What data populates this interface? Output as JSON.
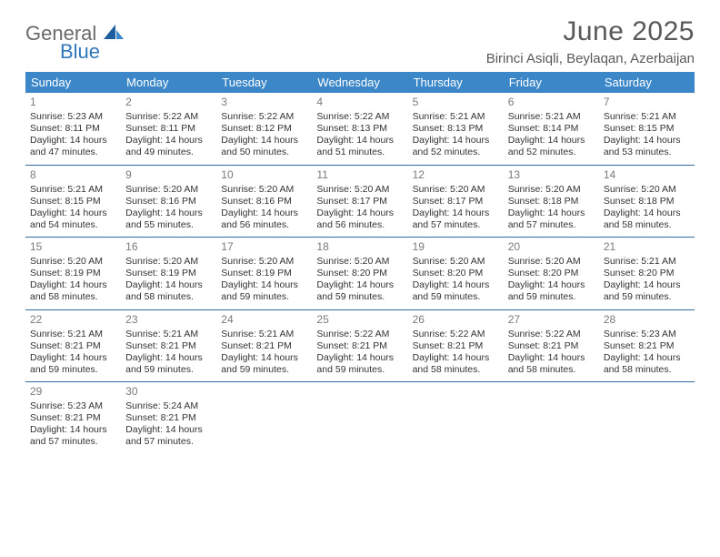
{
  "brand": {
    "general": "General",
    "blue": "Blue",
    "accent_color": "#2f78bd"
  },
  "title": "June 2025",
  "location": "Birinci Asiqli, Beylaqan, Azerbaijan",
  "colors": {
    "header_bg": "#3b87c8",
    "header_text": "#ffffff",
    "row_divider": "#2f6aa3",
    "body_text": "#333333",
    "muted_text": "#7a7a7a",
    "title_text": "#595959"
  },
  "days_of_week": [
    "Sunday",
    "Monday",
    "Tuesday",
    "Wednesday",
    "Thursday",
    "Friday",
    "Saturday"
  ],
  "weeks": [
    [
      {
        "n": "1",
        "sr": "5:23 AM",
        "ss": "8:11 PM",
        "dl": "14 hours and 47 minutes."
      },
      {
        "n": "2",
        "sr": "5:22 AM",
        "ss": "8:11 PM",
        "dl": "14 hours and 49 minutes."
      },
      {
        "n": "3",
        "sr": "5:22 AM",
        "ss": "8:12 PM",
        "dl": "14 hours and 50 minutes."
      },
      {
        "n": "4",
        "sr": "5:22 AM",
        "ss": "8:13 PM",
        "dl": "14 hours and 51 minutes."
      },
      {
        "n": "5",
        "sr": "5:21 AM",
        "ss": "8:13 PM",
        "dl": "14 hours and 52 minutes."
      },
      {
        "n": "6",
        "sr": "5:21 AM",
        "ss": "8:14 PM",
        "dl": "14 hours and 52 minutes."
      },
      {
        "n": "7",
        "sr": "5:21 AM",
        "ss": "8:15 PM",
        "dl": "14 hours and 53 minutes."
      }
    ],
    [
      {
        "n": "8",
        "sr": "5:21 AM",
        "ss": "8:15 PM",
        "dl": "14 hours and 54 minutes."
      },
      {
        "n": "9",
        "sr": "5:20 AM",
        "ss": "8:16 PM",
        "dl": "14 hours and 55 minutes."
      },
      {
        "n": "10",
        "sr": "5:20 AM",
        "ss": "8:16 PM",
        "dl": "14 hours and 56 minutes."
      },
      {
        "n": "11",
        "sr": "5:20 AM",
        "ss": "8:17 PM",
        "dl": "14 hours and 56 minutes."
      },
      {
        "n": "12",
        "sr": "5:20 AM",
        "ss": "8:17 PM",
        "dl": "14 hours and 57 minutes."
      },
      {
        "n": "13",
        "sr": "5:20 AM",
        "ss": "8:18 PM",
        "dl": "14 hours and 57 minutes."
      },
      {
        "n": "14",
        "sr": "5:20 AM",
        "ss": "8:18 PM",
        "dl": "14 hours and 58 minutes."
      }
    ],
    [
      {
        "n": "15",
        "sr": "5:20 AM",
        "ss": "8:19 PM",
        "dl": "14 hours and 58 minutes."
      },
      {
        "n": "16",
        "sr": "5:20 AM",
        "ss": "8:19 PM",
        "dl": "14 hours and 58 minutes."
      },
      {
        "n": "17",
        "sr": "5:20 AM",
        "ss": "8:19 PM",
        "dl": "14 hours and 59 minutes."
      },
      {
        "n": "18",
        "sr": "5:20 AM",
        "ss": "8:20 PM",
        "dl": "14 hours and 59 minutes."
      },
      {
        "n": "19",
        "sr": "5:20 AM",
        "ss": "8:20 PM",
        "dl": "14 hours and 59 minutes."
      },
      {
        "n": "20",
        "sr": "5:20 AM",
        "ss": "8:20 PM",
        "dl": "14 hours and 59 minutes."
      },
      {
        "n": "21",
        "sr": "5:21 AM",
        "ss": "8:20 PM",
        "dl": "14 hours and 59 minutes."
      }
    ],
    [
      {
        "n": "22",
        "sr": "5:21 AM",
        "ss": "8:21 PM",
        "dl": "14 hours and 59 minutes."
      },
      {
        "n": "23",
        "sr": "5:21 AM",
        "ss": "8:21 PM",
        "dl": "14 hours and 59 minutes."
      },
      {
        "n": "24",
        "sr": "5:21 AM",
        "ss": "8:21 PM",
        "dl": "14 hours and 59 minutes."
      },
      {
        "n": "25",
        "sr": "5:22 AM",
        "ss": "8:21 PM",
        "dl": "14 hours and 59 minutes."
      },
      {
        "n": "26",
        "sr": "5:22 AM",
        "ss": "8:21 PM",
        "dl": "14 hours and 58 minutes."
      },
      {
        "n": "27",
        "sr": "5:22 AM",
        "ss": "8:21 PM",
        "dl": "14 hours and 58 minutes."
      },
      {
        "n": "28",
        "sr": "5:23 AM",
        "ss": "8:21 PM",
        "dl": "14 hours and 58 minutes."
      }
    ],
    [
      {
        "n": "29",
        "sr": "5:23 AM",
        "ss": "8:21 PM",
        "dl": "14 hours and 57 minutes."
      },
      {
        "n": "30",
        "sr": "5:24 AM",
        "ss": "8:21 PM",
        "dl": "14 hours and 57 minutes."
      },
      null,
      null,
      null,
      null,
      null
    ]
  ],
  "labels": {
    "sunrise": "Sunrise:",
    "sunset": "Sunset:",
    "daylight": "Daylight:"
  }
}
